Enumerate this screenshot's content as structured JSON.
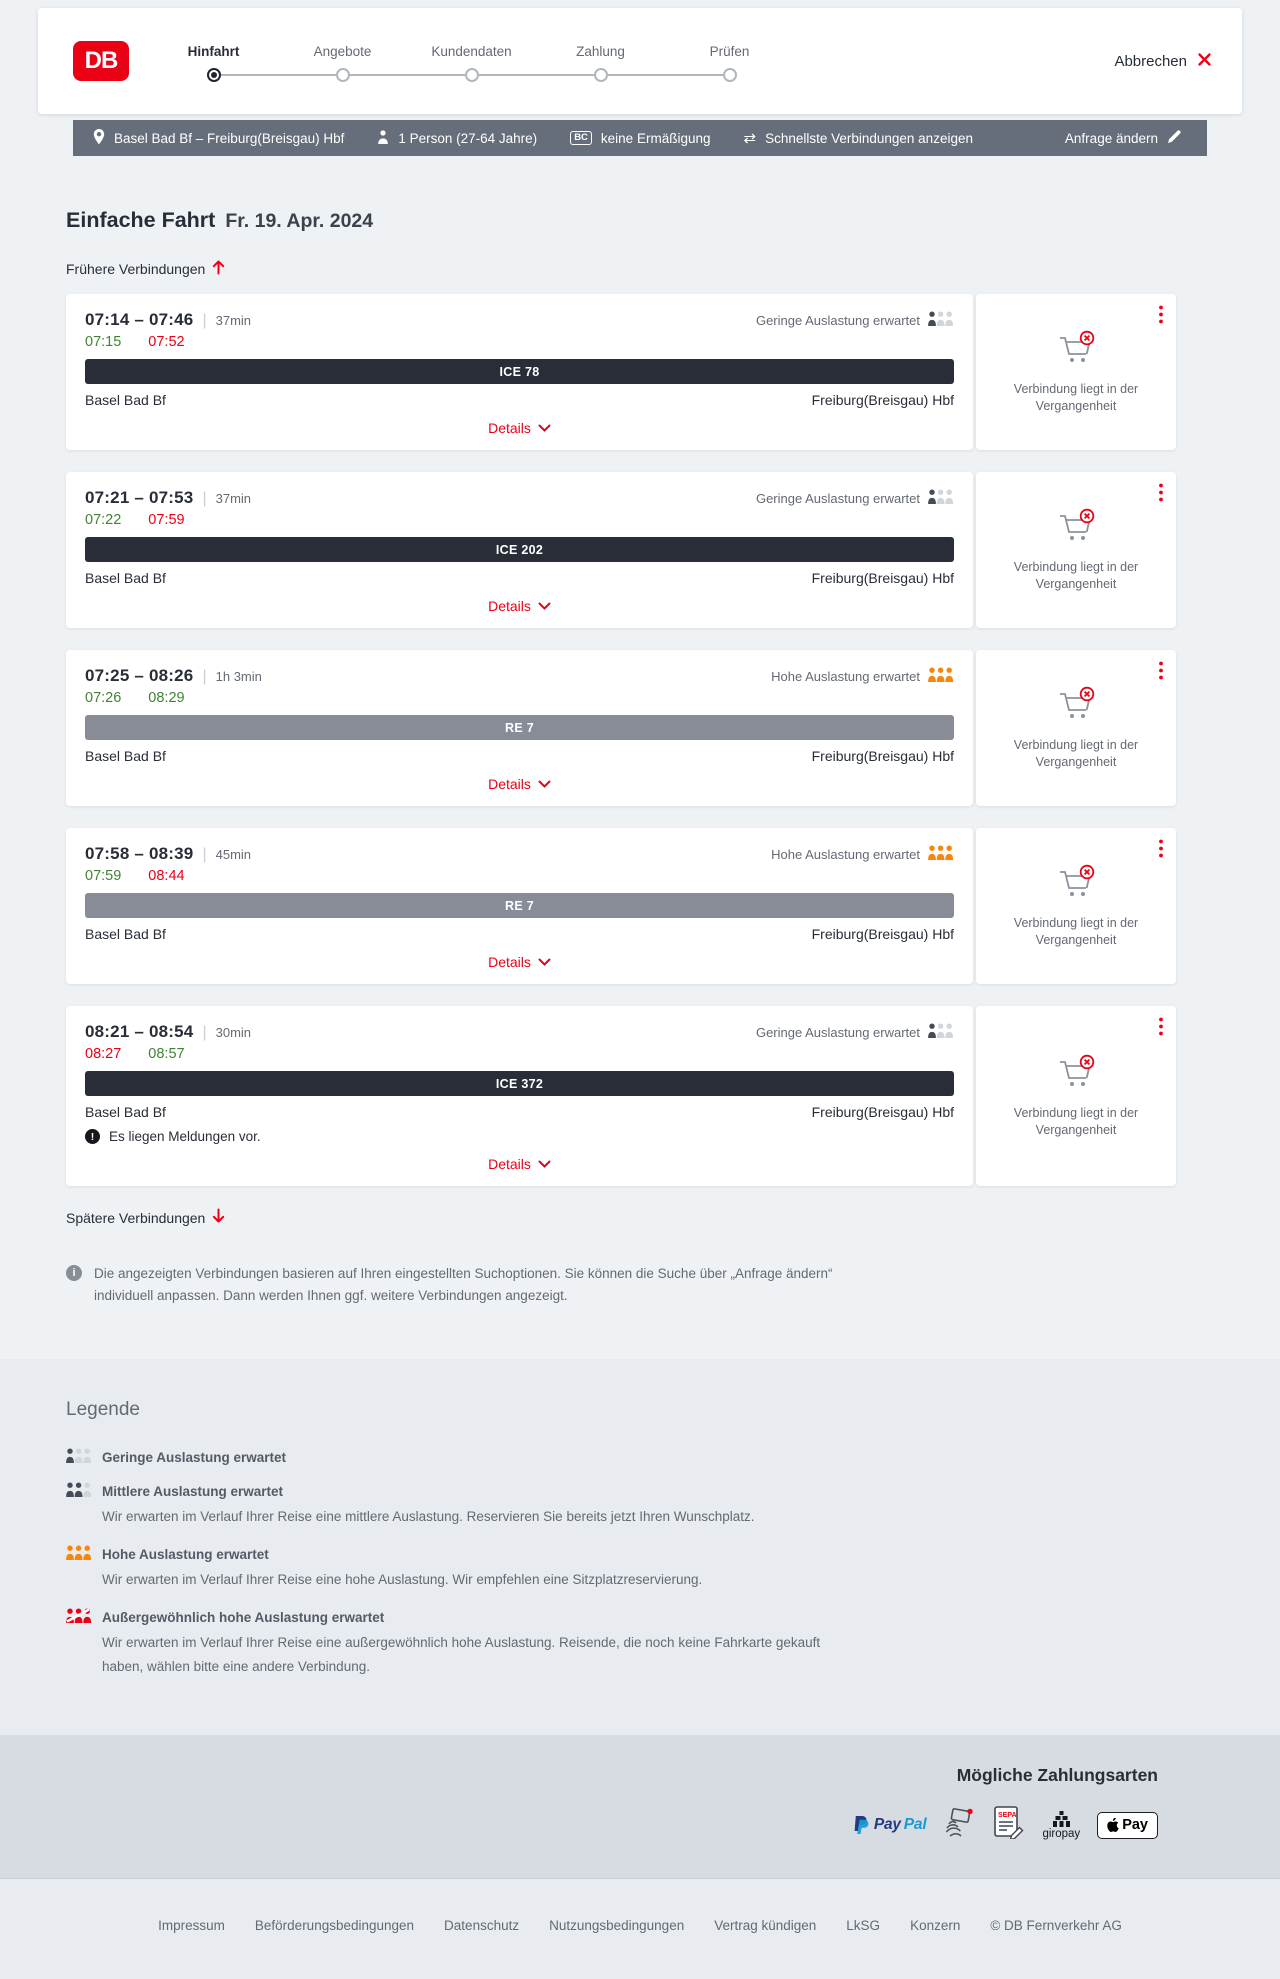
{
  "header": {
    "logo_text": "DB",
    "steps": [
      {
        "label": "Hinfahrt",
        "active": true
      },
      {
        "label": "Angebote",
        "active": false
      },
      {
        "label": "Kundendaten",
        "active": false
      },
      {
        "label": "Zahlung",
        "active": false
      },
      {
        "label": "Prüfen",
        "active": false
      }
    ],
    "cancel_label": "Abbrechen"
  },
  "criteria_bar": {
    "route": "Basel Bad Bf – Freiburg(Breisgau) Hbf",
    "passengers": "1 Person (27-64 Jahre)",
    "bc_badge": "BC",
    "discount": "keine Ermäßigung",
    "sort_option": "Schnellste Verbindungen anzeigen",
    "edit_label": "Anfrage ändern"
  },
  "page": {
    "title": "Einfache Fahrt",
    "date": "Fr. 19. Apr. 2024",
    "earlier_link": "Frühere Verbindungen",
    "later_link": "Spätere Verbindungen",
    "info_note": "Die angezeigten Verbindungen basieren auf Ihren eingestellten Suchoptionen. Sie können die Suche über „Anfrage ändern“ individuell anpassen. Dann werden Ihnen ggf. weitere Verbindungen angezeigt."
  },
  "labels": {
    "details": "Details",
    "past_note": "Verbindung liegt in der Vergangenheit"
  },
  "connections": [
    {
      "times": "07:14 – 07:46",
      "duration": "37min",
      "dep_actual": "07:15",
      "dep_status": "ontime",
      "arr_actual": "07:52",
      "arr_status": "delayed",
      "train": "ICE 78",
      "train_type": "ice",
      "from": "Basel Bad Bf",
      "to": "Freiburg(Breisgau) Hbf",
      "occupancy": "Geringe Auslastung erwartet",
      "occupancy_level": "low",
      "message": null
    },
    {
      "times": "07:21 – 07:53",
      "duration": "37min",
      "dep_actual": "07:22",
      "dep_status": "ontime",
      "arr_actual": "07:59",
      "arr_status": "delayed",
      "train": "ICE 202",
      "train_type": "ice",
      "from": "Basel Bad Bf",
      "to": "Freiburg(Breisgau) Hbf",
      "occupancy": "Geringe Auslastung erwartet",
      "occupancy_level": "low",
      "message": null
    },
    {
      "times": "07:25 – 08:26",
      "duration": "1h 3min",
      "dep_actual": "07:26",
      "dep_status": "ontime",
      "arr_actual": "08:29",
      "arr_status": "ontime",
      "train": "RE 7",
      "train_type": "re",
      "from": "Basel Bad Bf",
      "to": "Freiburg(Breisgau) Hbf",
      "occupancy": "Hohe Auslastung erwartet",
      "occupancy_level": "high",
      "message": null
    },
    {
      "times": "07:58 – 08:39",
      "duration": "45min",
      "dep_actual": "07:59",
      "dep_status": "ontime",
      "arr_actual": "08:44",
      "arr_status": "delayed",
      "train": "RE 7",
      "train_type": "re",
      "from": "Basel Bad Bf",
      "to": "Freiburg(Breisgau) Hbf",
      "occupancy": "Hohe Auslastung erwartet",
      "occupancy_level": "high",
      "message": null
    },
    {
      "times": "08:21 – 08:54",
      "duration": "30min",
      "dep_actual": "08:27",
      "dep_status": "delayed",
      "arr_actual": "08:57",
      "arr_status": "ontime",
      "train": "ICE 372",
      "train_type": "ice",
      "from": "Basel Bad Bf",
      "to": "Freiburg(Breisgau) Hbf",
      "occupancy": "Geringe Auslastung erwartet",
      "occupancy_level": "low",
      "message": "Es liegen Meldungen vor."
    }
  ],
  "legend": {
    "title": "Legende",
    "items": [
      {
        "title": "Geringe Auslastung erwartet",
        "level": "low",
        "desc": null
      },
      {
        "title": "Mittlere Auslastung erwartet",
        "level": "mid",
        "desc": "Wir erwarten im Verlauf Ihrer Reise eine mittlere Auslastung. Reservieren Sie bereits jetzt Ihren Wunschplatz."
      },
      {
        "title": "Hohe Auslastung erwartet",
        "level": "high",
        "desc": "Wir erwarten im Verlauf Ihrer Reise eine hohe Auslastung. Wir empfehlen eine Sitzplatzreservierung."
      },
      {
        "title": "Außergewöhnlich hohe Auslastung erwartet",
        "level": "extreme",
        "desc": "Wir erwarten im Verlauf Ihrer Reise eine außergewöhnlich hohe Auslastung. Reisende, die noch keine Fahrkarte gekauft haben, wählen bitte eine andere Verbindung."
      }
    ]
  },
  "footer": {
    "payments_title": "Mögliche Zahlungsarten",
    "payment_methods": [
      "PayPal",
      "Kreditkarte",
      "SEPA-Lastschrift",
      "giropay",
      "Apple Pay"
    ],
    "payment_logos": {
      "paypal_pay": "Pay",
      "paypal_pal": "Pal",
      "sepa": "SEPA",
      "giropay": "giropay",
      "applepay": "Pay"
    },
    "links": [
      "Impressum",
      "Beförderungsbedingungen",
      "Datenschutz",
      "Nutzungsbedingungen",
      "Vertrag kündigen",
      "LkSG",
      "Konzern"
    ],
    "copyright": "© DB Fernverkehr AG"
  },
  "colors": {
    "db_red": "#ec0016",
    "dark_text": "#282d37",
    "gray_text": "#646973",
    "green_ontime": "#408335",
    "orange_occupancy": "#f8860d",
    "train_bar_dark": "#282d37",
    "train_bar_gray": "#878c96",
    "criteria_bar_bg": "#666e7c"
  }
}
